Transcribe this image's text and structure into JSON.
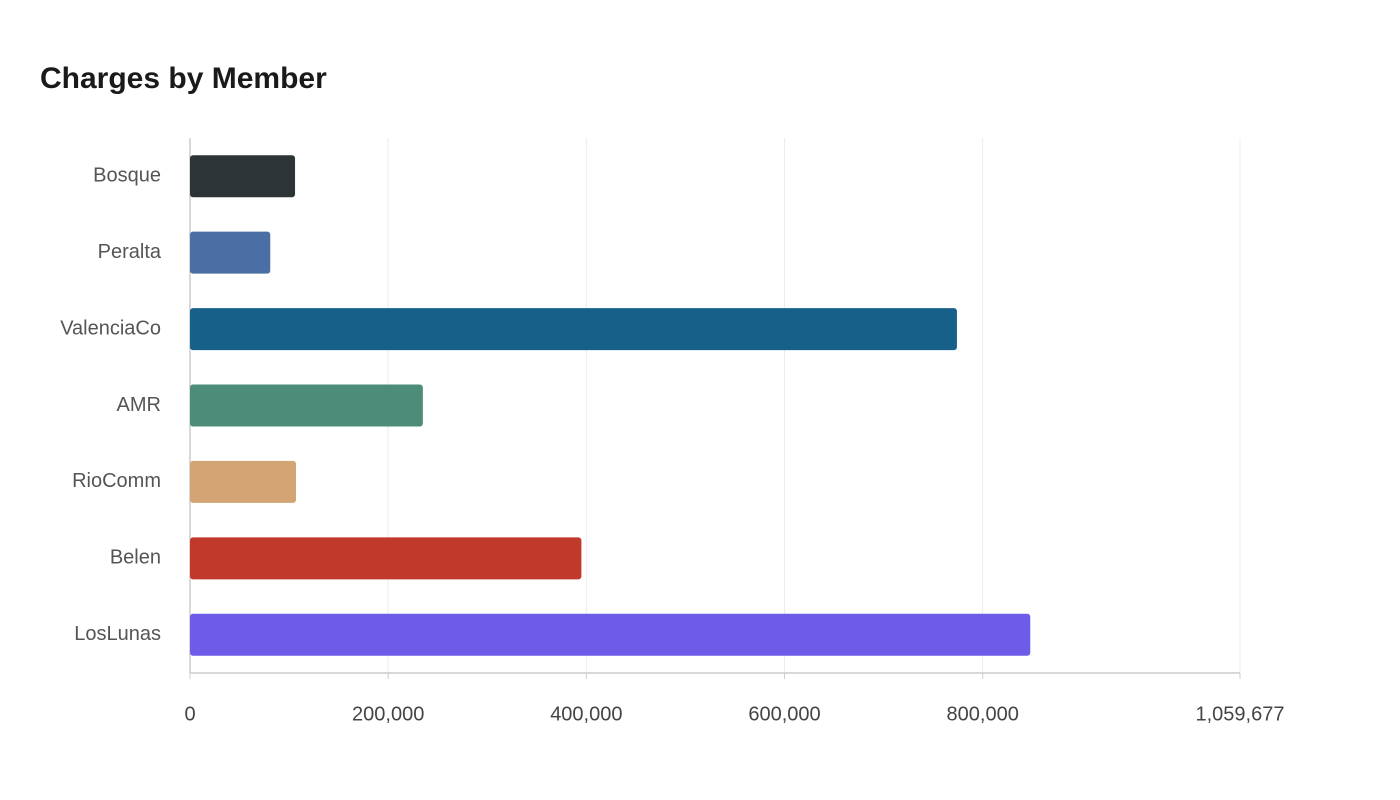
{
  "chart_data": {
    "type": "bar",
    "orientation": "horizontal",
    "title": "Charges by Member",
    "categories": [
      "Bosque",
      "Peralta",
      "ValenciaCo",
      "AMR",
      "RioComm",
      "Belen",
      "LosLunas"
    ],
    "values": [
      106000,
      81000,
      774000,
      235000,
      107000,
      395000,
      848000
    ],
    "colors": [
      "#2d3436",
      "#4a6fa5",
      "#17608a",
      "#4e8c7a",
      "#d4a574",
      "#c0392b",
      "#6c5ce7"
    ],
    "xlim": [
      0,
      1059677
    ],
    "xticks": [
      0,
      {
        "value": 200000,
        "label": "200,000"
      },
      {
        "value": 400000,
        "label": "400,000"
      },
      {
        "value": 600000,
        "label": "600,000"
      },
      {
        "value": 800000,
        "label": "800,000"
      },
      {
        "value": 1059677,
        "label": "1,059,677"
      }
    ],
    "grid": true
  }
}
